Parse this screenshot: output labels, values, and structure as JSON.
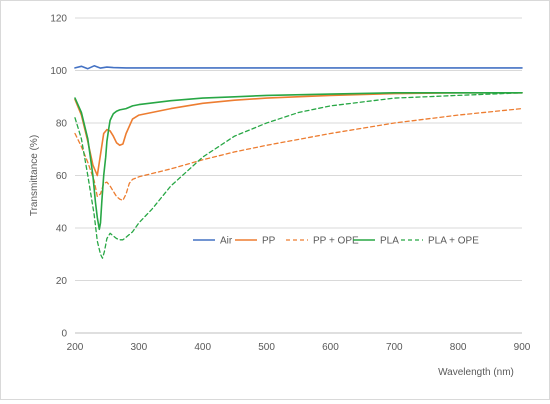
{
  "chart_data": {
    "type": "line",
    "xlabel": "Wavelength (nm)",
    "ylabel": "Transmittance (%)",
    "xlim": [
      200,
      900
    ],
    "ylim": [
      0,
      120
    ],
    "x_ticks": [
      200,
      300,
      400,
      500,
      600,
      700,
      800,
      900
    ],
    "y_ticks": [
      0,
      20,
      40,
      60,
      80,
      100,
      120
    ],
    "grid": "horizontal",
    "legend_position": "center-inside",
    "series": [
      {
        "name": "Air",
        "color": "#4472C4",
        "dash": "solid",
        "x": [
          200,
          210,
          220,
          230,
          240,
          250,
          260,
          280,
          300,
          400,
          500,
          600,
          700,
          800,
          900
        ],
        "y": [
          101.0,
          101.6,
          100.7,
          101.8,
          100.9,
          101.3,
          101.1,
          101.0,
          101.0,
          101.0,
          101.0,
          101.0,
          101.0,
          101.0,
          101.0
        ]
      },
      {
        "name": "PP",
        "color": "#ED7D31",
        "dash": "solid",
        "x": [
          200,
          210,
          220,
          228,
          235,
          240,
          245,
          250,
          255,
          260,
          265,
          270,
          275,
          280,
          290,
          300,
          350,
          400,
          450,
          500,
          600,
          700,
          800,
          900
        ],
        "y": [
          89,
          83,
          73,
          64,
          60,
          68,
          76,
          77.5,
          77,
          75,
          72.5,
          71.5,
          72,
          76,
          81.5,
          83,
          85.5,
          87.5,
          88.7,
          89.5,
          90.5,
          91.2,
          91.5,
          91.5
        ]
      },
      {
        "name": "PP + OPE",
        "color": "#ED7D31",
        "dash": "dashed",
        "x": [
          200,
          210,
          220,
          230,
          235,
          240,
          245,
          250,
          255,
          260,
          265,
          270,
          275,
          280,
          285,
          290,
          300,
          350,
          400,
          450,
          500,
          600,
          700,
          800,
          900
        ],
        "y": [
          76,
          71,
          65,
          58,
          52,
          53,
          57,
          57.5,
          56,
          54,
          52,
          51,
          50.5,
          53,
          57,
          58.5,
          59.5,
          62.5,
          66,
          69,
          71.5,
          76,
          80,
          83,
          85.5
        ]
      },
      {
        "name": "PLA",
        "color": "#28A745",
        "dash": "solid",
        "x": [
          200,
          210,
          220,
          228,
          232,
          235,
          238,
          240,
          242,
          245,
          248,
          250,
          253,
          255,
          258,
          260,
          265,
          270,
          280,
          290,
          300,
          350,
          400,
          450,
          500,
          600,
          700,
          800,
          900
        ],
        "y": [
          89.5,
          84,
          74,
          60,
          50,
          44,
          39.5,
          42,
          50,
          60,
          67,
          73,
          78,
          81,
          82.5,
          83.5,
          84.5,
          85,
          85.5,
          86.5,
          87,
          88.5,
          89.5,
          90,
          90.5,
          91,
          91.5,
          91.5,
          91.5
        ]
      },
      {
        "name": "PLA + OPE",
        "color": "#28A745",
        "dash": "dashed",
        "x": [
          200,
          210,
          220,
          230,
          235,
          240,
          243,
          246,
          250,
          255,
          260,
          265,
          270,
          275,
          280,
          290,
          300,
          320,
          350,
          400,
          450,
          500,
          550,
          600,
          700,
          800,
          900
        ],
        "y": [
          82,
          74,
          60,
          45,
          35,
          30,
          28.5,
          31,
          36,
          38,
          37,
          36,
          35.5,
          35.5,
          36.5,
          38.5,
          42,
          47,
          56,
          67,
          75,
          80,
          84,
          86.5,
          89.5,
          90.5,
          91.5
        ]
      }
    ]
  }
}
